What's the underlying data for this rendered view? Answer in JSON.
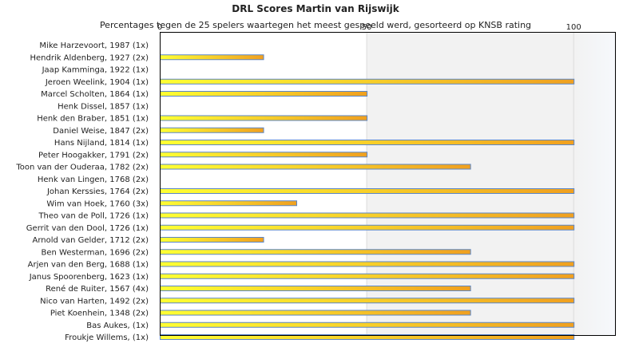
{
  "chart_data": {
    "type": "bar",
    "orientation": "horizontal",
    "title": "DRL Scores Martin van Rijswijk",
    "subtitle": "Percentages tegen de 25 spelers waartegen het meest gespeeld werd, gesorteerd op KNSB rating",
    "xlim": [
      0,
      110
    ],
    "xticks": [
      0,
      50,
      100
    ],
    "grid": true,
    "categories": [
      "Mike Harzevoort, 1987 (1x)",
      "Hendrik Aldenberg, 1927 (2x)",
      "Jaap Kamminga, 1922 (1x)",
      "Jeroen Weelink, 1904 (1x)",
      "Marcel Scholten, 1864 (1x)",
      "Henk Dissel, 1857 (1x)",
      "Henk den Braber, 1851 (1x)",
      "Daniel Weise, 1847 (2x)",
      "Hans Nijland, 1814 (1x)",
      "Peter Hoogakker, 1791 (2x)",
      "Toon van der Ouderaa, 1782 (2x)",
      "Henk van Lingen, 1768 (2x)",
      "Johan Kerssies, 1764 (2x)",
      "Wim van Hoek, 1760 (3x)",
      "Theo van de Poll, 1726 (1x)",
      "Gerrit van den Dool, 1726 (1x)",
      "Arnold van Gelder, 1712 (2x)",
      "Ben Westerman, 1696 (2x)",
      "Arjen van den Berg, 1688 (1x)",
      "Janus Spoorenberg, 1623 (1x)",
      "René de Ruiter, 1567 (4x)",
      "Nico van Harten, 1492 (2x)",
      "Piet Koenhein, 1348 (2x)",
      "Bas Aukes,  (1x)",
      "Froukje Willems,  (1x)"
    ],
    "values": [
      0,
      25,
      0,
      100,
      50,
      0,
      50,
      25,
      100,
      50,
      75,
      0,
      100,
      33,
      100,
      100,
      25,
      75,
      100,
      100,
      75,
      100,
      75,
      100,
      100
    ],
    "colors": {
      "bar_start": "#ffff33",
      "bar_end": "#f0a020",
      "bar_border": "#5a86c8",
      "band": "#f2f2f2",
      "band_edge": "#f6f8fc"
    }
  }
}
